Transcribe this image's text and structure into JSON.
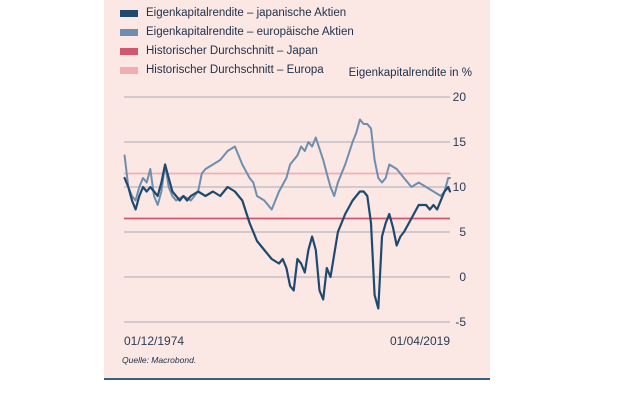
{
  "legend": [
    {
      "label": "Eigenkapitalrendite – japanische Aktien",
      "color": "#1f4a6e"
    },
    {
      "label": "Eigenkapitalrendite – europäische Aktien",
      "color": "#6f8eae"
    },
    {
      "label": "Historischer Durchschnitt – Japan",
      "color": "#d2566f"
    },
    {
      "label": "Historischer Durchschnitt – Europa",
      "color": "#f0aeb3"
    }
  ],
  "source": "Quelle: Macrobond.",
  "chart_data": {
    "type": "line",
    "ylabel": "Eigenkapitalrendite in %",
    "ylim": [
      -5,
      20
    ],
    "yticks": [
      20,
      15,
      10,
      5,
      0,
      -5
    ],
    "xlim": [
      1974.917,
      2019.25
    ],
    "xtick_labels": [
      {
        "x": 1974.917,
        "label": "01/12/1974"
      },
      {
        "x": 2019.25,
        "label": "01/04/2019"
      }
    ],
    "grid": true,
    "legend_position": "top-left",
    "reference_lines": [
      {
        "name": "Historischer Durchschnitt – Japan",
        "y": 6.5,
        "color": "#d2566f"
      },
      {
        "name": "Historischer Durchschnitt – Europa",
        "y": 11.5,
        "color": "#f0aeb3"
      }
    ],
    "series": [
      {
        "name": "Eigenkapitalrendite – japanische Aktien",
        "color": "#1f4a6e",
        "x": [
          1975.0,
          1975.5,
          1976.0,
          1976.5,
          1977.0,
          1977.5,
          1978.0,
          1978.5,
          1979.0,
          1979.5,
          1980.0,
          1980.5,
          1981.0,
          1981.5,
          1982.0,
          1982.5,
          1983.0,
          1983.5,
          1984.0,
          1985.0,
          1986.0,
          1987.0,
          1988.0,
          1989.0,
          1990.0,
          1990.5,
          1991.0,
          1992.0,
          1993.0,
          1994.0,
          1995.0,
          1996.0,
          1996.5,
          1997.0,
          1997.5,
          1998.0,
          1998.5,
          1999.0,
          1999.5,
          2000.0,
          2000.5,
          2001.0,
          2001.5,
          2002.0,
          2002.5,
          2003.0,
          2003.5,
          2004.0,
          2005.0,
          2006.0,
          2007.0,
          2007.5,
          2008.0,
          2008.5,
          2009.0,
          2009.5,
          2010.0,
          2010.5,
          2011.0,
          2011.5,
          2012.0,
          2012.5,
          2013.0,
          2014.0,
          2015.0,
          2016.0,
          2016.5,
          2017.0,
          2017.5,
          2018.0,
          2018.5,
          2019.0,
          2019.25
        ],
        "y": [
          11.0,
          10.0,
          8.5,
          7.5,
          9.0,
          10.0,
          9.5,
          10.0,
          9.5,
          9.0,
          10.5,
          12.5,
          11.0,
          9.5,
          9.0,
          8.5,
          9.0,
          8.5,
          9.0,
          9.5,
          9.0,
          9.5,
          9.0,
          10.0,
          9.5,
          9.0,
          8.5,
          6.0,
          4.0,
          3.0,
          2.0,
          1.5,
          2.0,
          1.0,
          -1.0,
          -1.5,
          2.0,
          1.5,
          0.5,
          3.0,
          4.5,
          3.0,
          -1.5,
          -2.5,
          1.0,
          0.0,
          2.5,
          5.0,
          7.0,
          8.5,
          9.5,
          9.5,
          9.0,
          6.0,
          -2.0,
          -3.5,
          4.5,
          6.0,
          7.0,
          5.5,
          3.5,
          4.5,
          5.0,
          6.5,
          8.0,
          8.0,
          7.5,
          8.0,
          7.5,
          8.5,
          9.5,
          10.0,
          9.5
        ]
      },
      {
        "name": "Eigenkapitalrendite – europäische Aktien",
        "color": "#6f8eae",
        "x": [
          1975.0,
          1975.5,
          1976.0,
          1976.5,
          1977.0,
          1977.5,
          1978.0,
          1978.5,
          1979.0,
          1979.5,
          1980.0,
          1980.5,
          1981.0,
          1981.5,
          1982.0,
          1983.0,
          1984.0,
          1985.0,
          1985.5,
          1986.0,
          1987.0,
          1988.0,
          1989.0,
          1990.0,
          1990.5,
          1991.0,
          1992.0,
          1992.5,
          1993.0,
          1994.0,
          1995.0,
          1996.0,
          1997.0,
          1997.5,
          1998.0,
          1998.5,
          1999.0,
          1999.5,
          2000.0,
          2000.5,
          2001.0,
          2002.0,
          2002.5,
          2003.0,
          2003.5,
          2004.0,
          2005.0,
          2006.0,
          2006.5,
          2007.0,
          2007.5,
          2008.0,
          2008.5,
          2009.0,
          2009.5,
          2010.0,
          2010.5,
          2011.0,
          2012.0,
          2013.0,
          2014.0,
          2015.0,
          2016.0,
          2017.0,
          2018.0,
          2018.5,
          2019.0,
          2019.25
        ],
        "y": [
          13.5,
          10.0,
          9.0,
          8.5,
          10.0,
          11.0,
          10.5,
          12.0,
          9.0,
          8.0,
          9.5,
          12.5,
          10.0,
          9.0,
          8.5,
          9.0,
          8.5,
          9.5,
          11.5,
          12.0,
          12.5,
          13.0,
          14.0,
          14.5,
          13.5,
          12.5,
          11.0,
          10.5,
          9.0,
          8.5,
          7.5,
          9.5,
          11.0,
          12.5,
          13.0,
          13.5,
          14.5,
          14.0,
          15.0,
          14.5,
          15.5,
          13.0,
          11.5,
          10.0,
          9.0,
          10.5,
          12.5,
          15.0,
          16.0,
          17.5,
          17.0,
          17.0,
          16.5,
          13.0,
          11.0,
          10.5,
          11.0,
          12.5,
          12.0,
          11.0,
          10.0,
          10.5,
          10.0,
          9.5,
          9.0,
          9.5,
          11.0,
          11.0
        ]
      }
    ]
  }
}
